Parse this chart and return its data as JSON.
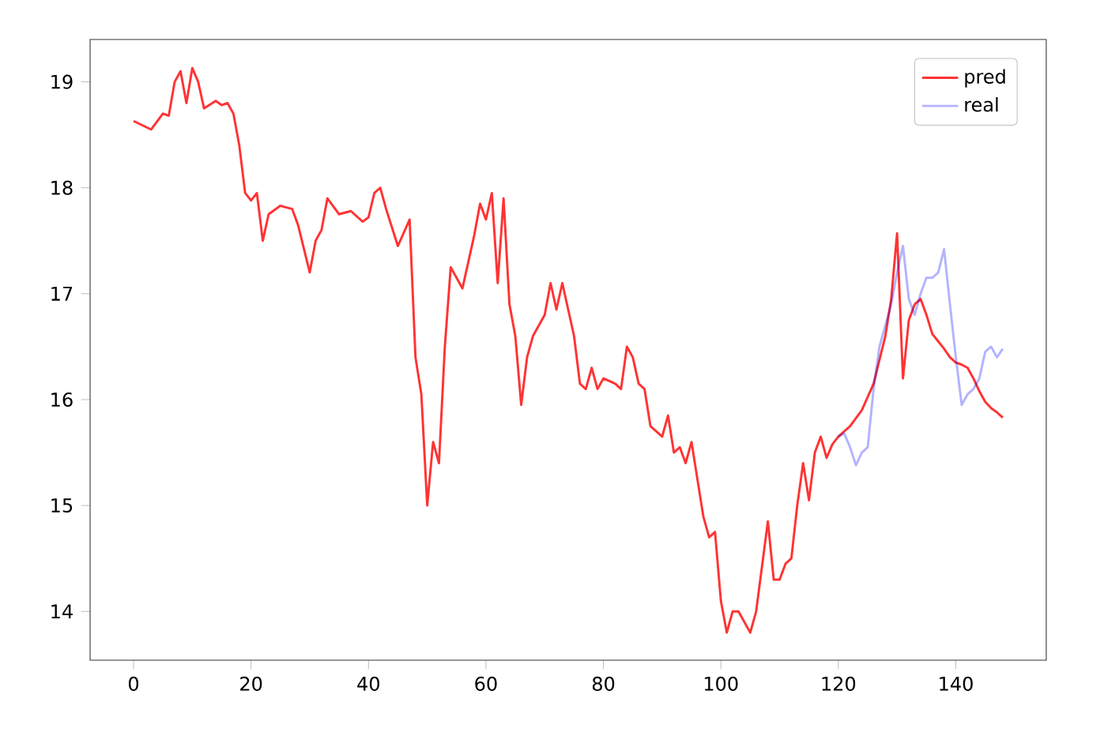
{
  "chart_data": {
    "type": "line",
    "xlim": [
      -7.4,
      155.4
    ],
    "ylim": [
      13.54,
      19.4
    ],
    "xticks": [
      0,
      20,
      40,
      60,
      80,
      100,
      120,
      140
    ],
    "yticks": [
      14,
      15,
      16,
      17,
      18,
      19
    ],
    "legend": "top right",
    "marker": "none",
    "line_style": "solid",
    "grid": false,
    "series": [
      {
        "name": "pred",
        "color": "#ff3333",
        "x": [
          0,
          3,
          5,
          6,
          7,
          8,
          9,
          10,
          11,
          12,
          14,
          15,
          16,
          17,
          18,
          19,
          20,
          21,
          22,
          23,
          25,
          27,
          28,
          30,
          31,
          32,
          33,
          35,
          37,
          39,
          40,
          41,
          42,
          43,
          45,
          47,
          48,
          49,
          50,
          51,
          52,
          53,
          54,
          56,
          58,
          59,
          60,
          61,
          62,
          63,
          64,
          65,
          66,
          67,
          68,
          70,
          71,
          72,
          73,
          75,
          76,
          77,
          78,
          79,
          80,
          82,
          83,
          84,
          85,
          86,
          87,
          88,
          90,
          91,
          92,
          93,
          94,
          95,
          96,
          97,
          98,
          99,
          100,
          101,
          102,
          103,
          105,
          106,
          108,
          109,
          110,
          111,
          112,
          113,
          114,
          115,
          116,
          117,
          118,
          119,
          120,
          122,
          124,
          126,
          128,
          129,
          130,
          131,
          132,
          133,
          134,
          135,
          136,
          137,
          138,
          139,
          140,
          141,
          142,
          143,
          144,
          145,
          146,
          147,
          148
        ],
        "values": [
          18.63,
          18.55,
          18.7,
          18.68,
          19.0,
          19.1,
          18.8,
          19.13,
          19.0,
          18.75,
          18.82,
          18.78,
          18.8,
          18.7,
          18.4,
          17.95,
          17.88,
          17.95,
          17.5,
          17.75,
          17.83,
          17.8,
          17.65,
          17.2,
          17.5,
          17.6,
          17.9,
          17.75,
          17.78,
          17.68,
          17.72,
          17.95,
          18.0,
          17.8,
          17.45,
          17.7,
          16.4,
          16.05,
          15.0,
          15.6,
          15.4,
          16.5,
          17.25,
          17.05,
          17.55,
          17.85,
          17.7,
          17.95,
          17.1,
          17.9,
          16.9,
          16.6,
          15.95,
          16.4,
          16.6,
          16.8,
          17.1,
          16.85,
          17.1,
          16.6,
          16.15,
          16.1,
          16.3,
          16.1,
          16.2,
          16.15,
          16.1,
          16.5,
          16.4,
          16.15,
          16.1,
          15.75,
          15.65,
          15.85,
          15.5,
          15.55,
          15.4,
          15.6,
          15.25,
          14.9,
          14.7,
          14.75,
          14.1,
          13.8,
          14.0,
          14.0,
          13.8,
          14.0,
          14.85,
          14.3,
          14.3,
          14.45,
          14.5,
          15.0,
          15.4,
          15.05,
          15.5,
          15.65,
          15.45,
          15.58,
          15.65,
          15.75,
          15.9,
          16.15,
          16.6,
          16.95,
          17.57,
          16.2,
          16.75,
          16.9,
          16.95,
          16.8,
          16.62,
          16.55,
          16.48,
          16.4,
          16.35,
          16.33,
          16.3,
          16.2,
          16.08,
          15.98,
          15.92,
          15.88,
          15.83
        ]
      },
      {
        "name": "real",
        "color": "#b3b3ff",
        "x": [
          120,
          121,
          122,
          123,
          124,
          125,
          126,
          127,
          128,
          129,
          130,
          131,
          132,
          133,
          134,
          135,
          136,
          137,
          138,
          139,
          140,
          141,
          142,
          143,
          144,
          145,
          146,
          147,
          148
        ],
        "values": [
          15.65,
          15.68,
          15.55,
          15.38,
          15.5,
          15.55,
          16.1,
          16.5,
          16.7,
          16.9,
          17.2,
          17.45,
          16.95,
          16.8,
          17.0,
          17.15,
          17.15,
          17.2,
          17.42,
          16.9,
          16.4,
          15.95,
          16.05,
          16.1,
          16.2,
          16.45,
          16.5,
          16.4,
          16.48
        ]
      }
    ]
  }
}
